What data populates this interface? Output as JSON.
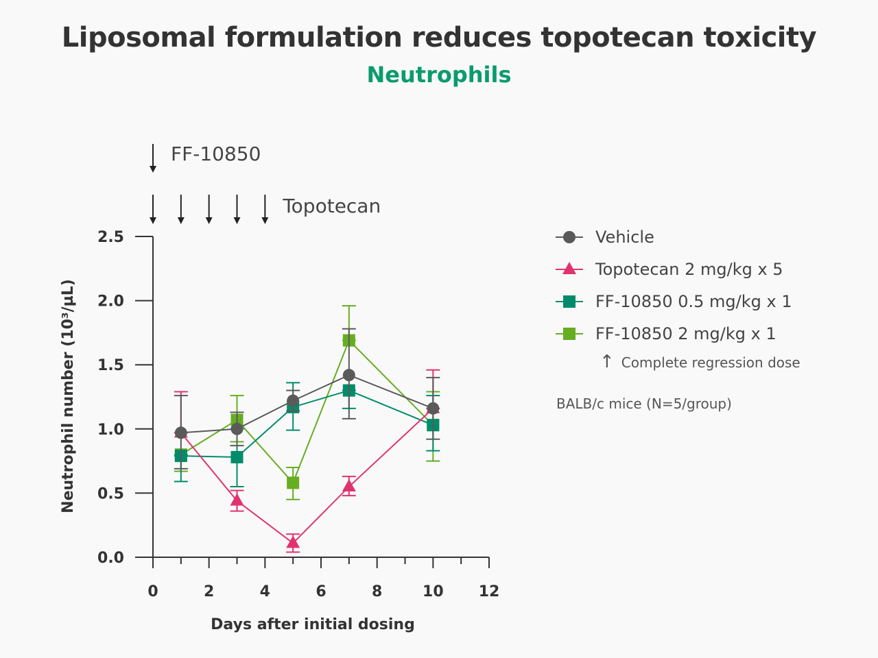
{
  "chart_data": {
    "type": "line",
    "title": "Liposomal formulation reduces topotecan toxicity",
    "subtitle": "Neutrophils",
    "xlabel": "Days after initial dosing",
    "ylabel": "Neutrophil number (10³/µL)",
    "xlim": [
      0,
      12
    ],
    "ylim": [
      0,
      2.5
    ],
    "xticks": [
      "0",
      "2",
      "4",
      "6",
      "8",
      "10",
      "12"
    ],
    "yticks": [
      "0.0",
      "0.5",
      "1.0",
      "1.5",
      "2.0",
      "2.5"
    ],
    "legend_position": "right",
    "series": [
      {
        "name": "Vehicle",
        "color": "#5a5a5a",
        "marker": "circle",
        "x": [
          1,
          3,
          5,
          7,
          10
        ],
        "y": [
          0.97,
          1.0,
          1.22,
          1.42,
          1.16
        ],
        "err_high": [
          1.26,
          1.13,
          1.3,
          1.78,
          1.4
        ],
        "err_low": [
          0.69,
          0.87,
          1.14,
          1.08,
          0.92
        ]
      },
      {
        "name": "Topotecan 2 mg/kg x 5",
        "color": "#e0336e",
        "marker": "triangle",
        "x": [
          1,
          3,
          5,
          7,
          10
        ],
        "y": [
          0.97,
          0.44,
          0.11,
          0.55,
          1.16
        ],
        "err_high": [
          1.29,
          0.52,
          0.18,
          0.63,
          1.46
        ],
        "err_low": [
          0.97,
          0.36,
          0.04,
          0.48,
          1.16
        ]
      },
      {
        "name": "FF-10850 0.5 mg/kg x 1",
        "color": "#008c6a",
        "marker": "square",
        "x": [
          1,
          3,
          5,
          7,
          10
        ],
        "y": [
          0.79,
          0.78,
          1.17,
          1.3,
          1.03
        ],
        "err_high": [
          0.79,
          1.0,
          1.36,
          1.3,
          1.26
        ],
        "err_low": [
          0.59,
          0.55,
          0.99,
          1.16,
          0.83
        ]
      },
      {
        "name": "FF-10850 2 mg/kg x 1",
        "color": "#66ad22",
        "marker": "square",
        "x": [
          1,
          3,
          5,
          7,
          10
        ],
        "y": [
          0.8,
          1.07,
          0.58,
          1.69,
          1.03
        ],
        "err_high": [
          0.8,
          1.26,
          0.7,
          1.96,
          1.29
        ],
        "err_low": [
          0.67,
          0.9,
          0.45,
          1.69,
          0.75
        ]
      }
    ],
    "dosing": [
      {
        "label": "FF-10850",
        "days": [
          0
        ]
      },
      {
        "label": "Topotecan",
        "days": [
          0,
          1,
          2,
          3,
          4
        ]
      }
    ],
    "annotations": [
      "Complete regression dose",
      "BALB/c mice (N=5/group)"
    ],
    "regression_arrow": "↑"
  }
}
